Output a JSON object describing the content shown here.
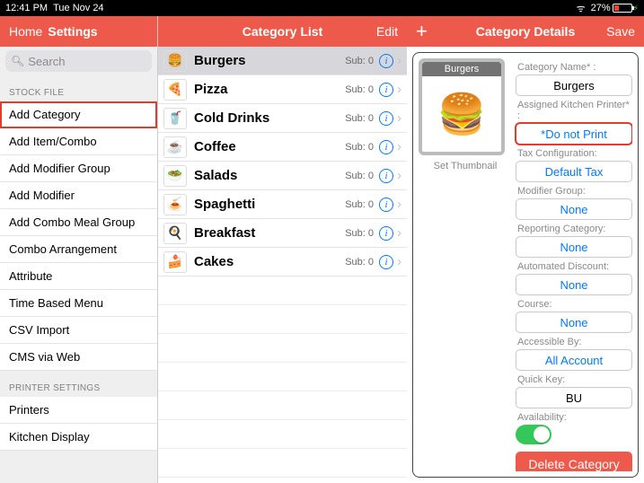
{
  "status": {
    "time": "12:41 PM",
    "date": "Tue Nov 24",
    "battery_pct": "27%"
  },
  "col1": {
    "hdr_left": "Home",
    "hdr_title": "Settings",
    "search_placeholder": "Search",
    "groups": [
      {
        "title": "STOCK FILE",
        "items": [
          {
            "label": "Add Category",
            "selected": true
          },
          {
            "label": "Add Item/Combo"
          },
          {
            "label": "Add Modifier Group"
          },
          {
            "label": "Add Modifier"
          },
          {
            "label": "Add Combo Meal Group"
          },
          {
            "label": "Combo Arrangement"
          },
          {
            "label": "Attribute"
          },
          {
            "label": "Time Based Menu"
          },
          {
            "label": "CSV Import"
          },
          {
            "label": "CMS via Web"
          }
        ]
      },
      {
        "title": "PRINTER SETTINGS",
        "items": [
          {
            "label": "Printers"
          },
          {
            "label": "Kitchen Display"
          }
        ]
      }
    ]
  },
  "col2": {
    "hdr_title": "Category List",
    "hdr_right": "Edit",
    "sub_prefix": "Sub: ",
    "rows": [
      {
        "label": "Burgers",
        "emoji": "🍔",
        "sub": "0",
        "selected": true
      },
      {
        "label": "Pizza",
        "emoji": "🍕",
        "sub": "0"
      },
      {
        "label": "Cold Drinks",
        "emoji": "🥤",
        "sub": "0"
      },
      {
        "label": "Coffee",
        "emoji": "☕",
        "sub": "0"
      },
      {
        "label": "Salads",
        "emoji": "🥗",
        "sub": "0"
      },
      {
        "label": "Spaghetti",
        "emoji": "🍝",
        "sub": "0"
      },
      {
        "label": "Breakfast",
        "emoji": "🍳",
        "sub": "0"
      },
      {
        "label": "Cakes",
        "emoji": "🍰",
        "sub": "0"
      }
    ]
  },
  "col3": {
    "hdr_title": "Category Details",
    "hdr_left": "+",
    "hdr_right": "Save",
    "thumb_title": "Burgers",
    "thumb_emoji": "🍔",
    "set_thumb": "Set Thumbnail",
    "fields": {
      "cat_name_lbl": "Category Name* :",
      "cat_name_val": "Burgers",
      "printer_lbl": "Assigned Kitchen Printer* :",
      "printer_val": "*Do not Print",
      "tax_lbl": "Tax Configuration:",
      "tax_val": "Default Tax",
      "mod_lbl": "Modifier Group:",
      "mod_val": "None",
      "rep_lbl": "Reporting Category:",
      "rep_val": "None",
      "auto_lbl": "Automated Discount:",
      "auto_val": "None",
      "course_lbl": "Course:",
      "course_val": "None",
      "access_lbl": "Accessible By:",
      "access_val": "All Account",
      "qk_lbl": "Quick Key:",
      "qk_val": "BU",
      "avail_lbl": "Availability:",
      "delete": "Delete Category"
    }
  }
}
